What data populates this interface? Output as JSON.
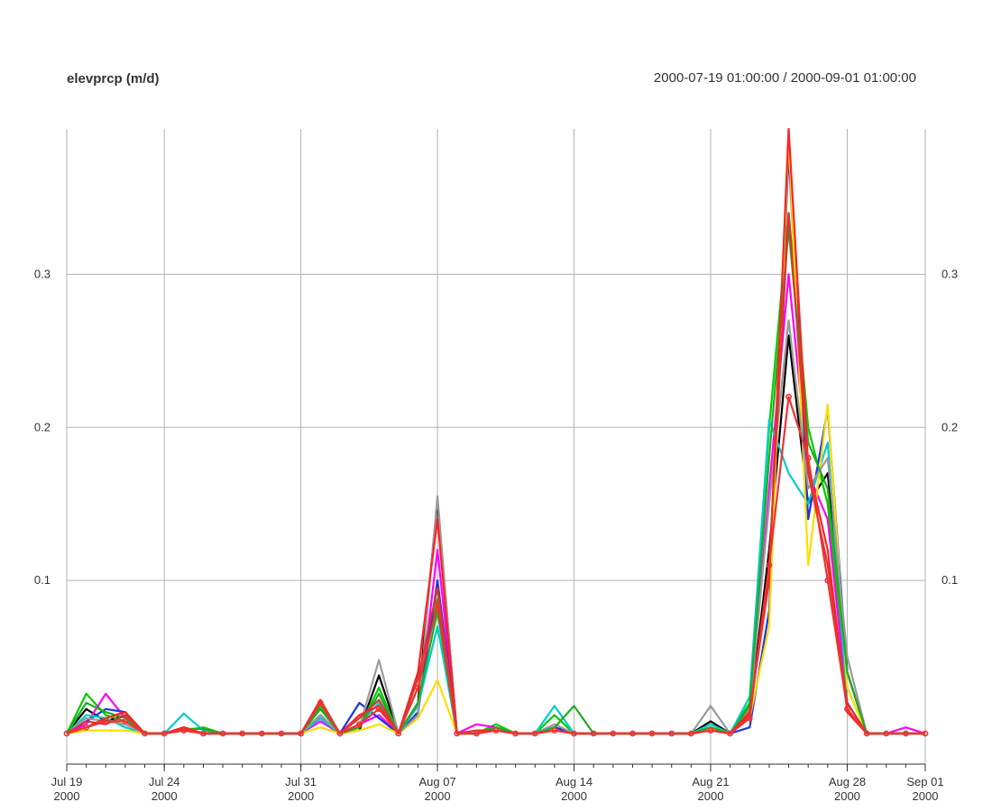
{
  "chart_data": {
    "type": "line",
    "title": "elevprcp (m/d)",
    "subtitle": "2000-07-19 01:00:00 / 2000-09-01 01:00:00",
    "xlabel": "",
    "ylabel": "",
    "x_start": "2000-07-19",
    "x_end": "2000-09-01",
    "ylim": [
      -0.02,
      0.395
    ],
    "grid": true,
    "legend": "none",
    "y_ticks": [
      {
        "value": 0.1,
        "label": "0.1"
      },
      {
        "value": 0.2,
        "label": "0.2"
      },
      {
        "value": 0.3,
        "label": "0.3"
      }
    ],
    "x_ticks": [
      {
        "date": "2000-07-19",
        "label": "Jul 19",
        "year": "2000"
      },
      {
        "date": "2000-07-24",
        "label": "Jul 24",
        "year": "2000"
      },
      {
        "date": "2000-07-31",
        "label": "Jul 31",
        "year": "2000"
      },
      {
        "date": "2000-08-07",
        "label": "Aug 07",
        "year": "2000"
      },
      {
        "date": "2000-08-14",
        "label": "Aug 14",
        "year": "2000"
      },
      {
        "date": "2000-08-21",
        "label": "Aug 21",
        "year": "2000"
      },
      {
        "date": "2000-08-28",
        "label": "Aug 28",
        "year": "2000"
      },
      {
        "date": "2000-09-01",
        "label": "Sep 01",
        "year": "2000"
      }
    ],
    "dates": [
      "2000-07-19",
      "2000-07-20",
      "2000-07-21",
      "2000-07-22",
      "2000-07-23",
      "2000-07-24",
      "2000-07-25",
      "2000-07-26",
      "2000-07-27",
      "2000-07-28",
      "2000-07-29",
      "2000-07-30",
      "2000-07-31",
      "2000-08-01",
      "2000-08-02",
      "2000-08-03",
      "2000-08-04",
      "2000-08-05",
      "2000-08-06",
      "2000-08-07",
      "2000-08-08",
      "2000-08-09",
      "2000-08-10",
      "2000-08-11",
      "2000-08-12",
      "2000-08-13",
      "2000-08-14",
      "2000-08-15",
      "2000-08-16",
      "2000-08-17",
      "2000-08-18",
      "2000-08-19",
      "2000-08-20",
      "2000-08-21",
      "2000-08-22",
      "2000-08-23",
      "2000-08-24",
      "2000-08-25",
      "2000-08-26",
      "2000-08-27",
      "2000-08-28",
      "2000-08-29",
      "2000-08-30",
      "2000-08-31",
      "2000-09-01"
    ],
    "series": [
      {
        "color": "#000000",
        "values": [
          0,
          0.016,
          0.008,
          0.012,
          0,
          0,
          0.004,
          0,
          0,
          0,
          0,
          0,
          0,
          0.012,
          0,
          0.002,
          0.038,
          0,
          0.02,
          0.152,
          0,
          0,
          0.002,
          0,
          0,
          0.004,
          0,
          0,
          0,
          0,
          0,
          0,
          0,
          0.008,
          0,
          0.012,
          0.12,
          0.26,
          0.15,
          0.17,
          0.04,
          0,
          0,
          0,
          0
        ]
      },
      {
        "color": "#00cc00",
        "values": [
          0,
          0.026,
          0.012,
          0.008,
          0,
          0,
          0.002,
          0.004,
          0,
          0,
          0,
          0,
          0,
          0.018,
          0,
          0.004,
          0.03,
          0,
          0.03,
          0.088,
          0,
          0,
          0.006,
          0,
          0,
          0.012,
          0,
          0,
          0,
          0,
          0,
          0,
          0,
          0.004,
          0,
          0.02,
          0.2,
          0.34,
          0.2,
          0.15,
          0.03,
          0,
          0,
          0,
          0
        ]
      },
      {
        "color": "#ff00ff",
        "values": [
          0,
          0.006,
          0.026,
          0.01,
          0,
          0,
          0.002,
          0,
          0,
          0,
          0,
          0,
          0,
          0.008,
          0,
          0.006,
          0.012,
          0,
          0.012,
          0.12,
          0,
          0.006,
          0.004,
          0,
          0,
          0.004,
          0,
          0,
          0,
          0,
          0,
          0,
          0,
          0.002,
          0,
          0.01,
          0.16,
          0.3,
          0.17,
          0.14,
          0.02,
          0,
          0,
          0.004,
          0
        ]
      },
      {
        "color": "#2233dd",
        "values": [
          0,
          0.008,
          0.016,
          0.014,
          0,
          0,
          0.004,
          0,
          0,
          0,
          0,
          0,
          0,
          0.01,
          0,
          0.02,
          0.01,
          0,
          0.014,
          0.1,
          0,
          0,
          0.002,
          0,
          0,
          0.004,
          0,
          0,
          0,
          0,
          0,
          0,
          0,
          0.002,
          0,
          0.004,
          0.08,
          0.38,
          0.14,
          0.212,
          0.04,
          0,
          0,
          0,
          0
        ]
      },
      {
        "color": "#00cccc",
        "values": [
          0,
          0.012,
          0.01,
          0.004,
          0,
          0,
          0.013,
          0.002,
          0,
          0,
          0,
          0,
          0,
          0.01,
          0,
          0.006,
          0.02,
          0,
          0.018,
          0.07,
          0,
          0,
          0.004,
          0,
          0,
          0.018,
          0,
          0,
          0,
          0,
          0,
          0,
          0,
          0.006,
          0,
          0.024,
          0.205,
          0.17,
          0.15,
          0.19,
          0.02,
          0,
          0,
          0,
          0
        ]
      },
      {
        "color": "#ffdd00",
        "values": [
          0,
          0.002,
          0.002,
          0.002,
          0,
          0,
          0.002,
          0,
          0,
          0,
          0,
          0,
          0,
          0.004,
          0,
          0.002,
          0.006,
          0,
          0.01,
          0.035,
          0,
          0,
          0.002,
          0,
          0,
          0.002,
          0,
          0,
          0,
          0,
          0,
          0,
          0,
          0.004,
          0,
          0.01,
          0.07,
          0.39,
          0.11,
          0.215,
          0.03,
          0,
          0,
          0,
          0
        ]
      },
      {
        "color": "#999999",
        "values": [
          0,
          0.01,
          0.008,
          0.006,
          0,
          0,
          0.004,
          0,
          0,
          0,
          0,
          0,
          0,
          0.012,
          0,
          0.004,
          0.048,
          0,
          0.012,
          0.155,
          0,
          0,
          0.004,
          0,
          0,
          0.006,
          0,
          0,
          0,
          0,
          0,
          0,
          0,
          0.018,
          0,
          0.016,
          0.15,
          0.27,
          0.16,
          0.18,
          0.05,
          0,
          0,
          0,
          0
        ]
      },
      {
        "color": "#22aa22",
        "values": [
          0,
          0.02,
          0.014,
          0.01,
          0,
          0,
          0.003,
          0.003,
          0,
          0,
          0,
          0,
          0,
          0.016,
          0,
          0.004,
          0.026,
          0,
          0.02,
          0.08,
          0,
          0,
          0.004,
          0,
          0,
          0.004,
          0.018,
          0,
          0,
          0,
          0,
          0,
          0,
          0.004,
          0,
          0.018,
          0.18,
          0.33,
          0.19,
          0.16,
          0.04,
          0,
          0,
          0,
          0
        ]
      },
      {
        "color": "#ff2222",
        "values": [
          0,
          0.004,
          0.01,
          0.014,
          0,
          0,
          0.004,
          0,
          0,
          0,
          0,
          0,
          0,
          0.022,
          0,
          0.012,
          0.018,
          0,
          0.04,
          0.14,
          0,
          0,
          0.002,
          0,
          0,
          0.002,
          0,
          0,
          0,
          0,
          0,
          0,
          0,
          0.002,
          0,
          0.014,
          0.1,
          0.395,
          0.175,
          0.12,
          0.014,
          0,
          0,
          0,
          0
        ]
      },
      {
        "color": "#dd3333",
        "values": [
          0,
          0.008,
          0.006,
          0.012,
          0,
          0,
          0.002,
          0,
          0,
          0,
          0,
          0,
          0,
          0.02,
          0,
          0.01,
          0.022,
          0,
          0.036,
          0.095,
          0,
          0.002,
          0.002,
          0,
          0,
          0.002,
          0,
          0,
          0,
          0,
          0,
          0,
          0,
          0.002,
          0,
          0.012,
          0.11,
          0.34,
          0.17,
          0.11,
          0.02,
          0,
          0,
          0,
          0
        ]
      },
      {
        "color": "#ee3333",
        "values": [
          0,
          0.004,
          0.008,
          0.008,
          0,
          0,
          0.002,
          0,
          0,
          0,
          0,
          0,
          0,
          0.02,
          0,
          0.006,
          0.016,
          0,
          0.03,
          0.085,
          0,
          0,
          0.002,
          0,
          0,
          0.002,
          0,
          0,
          0,
          0,
          0,
          0,
          0,
          0.002,
          0,
          0.01,
          0.11,
          0.22,
          0.18,
          0.1,
          0.016,
          0,
          0,
          0,
          0
        ]
      }
    ]
  }
}
